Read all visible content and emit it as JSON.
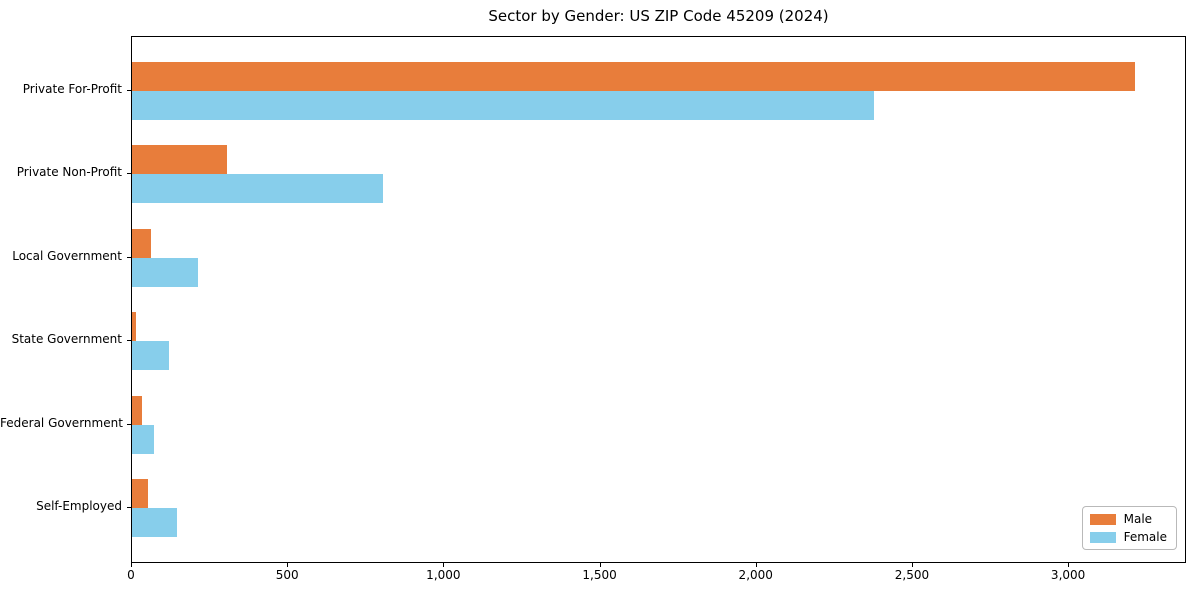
{
  "title": "Sector by Gender: US ZIP Code 45209 (2024)",
  "chart_data": {
    "type": "bar",
    "orientation": "horizontal",
    "title": "Sector by Gender: US ZIP Code 45209 (2024)",
    "xlabel": "",
    "ylabel": "",
    "categories": [
      "Private For-Profit",
      "Private Non-Profit",
      "Local Government",
      "State Government",
      "Federal Government",
      "Self-Employed"
    ],
    "series": [
      {
        "name": "Male",
        "color": "#E87D3B",
        "values": [
          3210,
          305,
          60,
          13,
          32,
          50
        ]
      },
      {
        "name": "Female",
        "color": "#87CEEB",
        "values": [
          2375,
          805,
          210,
          120,
          70,
          145
        ]
      }
    ],
    "xlim": [
      0,
      3371
    ],
    "x_ticks": [
      0,
      500,
      1000,
      1500,
      2000,
      2500,
      3000
    ],
    "x_tick_labels": [
      "0",
      "500",
      "1,000",
      "1,500",
      "2,000",
      "2,500",
      "3,000"
    ],
    "grid": false,
    "legend_position": "lower right"
  },
  "legend": {
    "items": [
      {
        "label": "Male",
        "color": "#E87D3B"
      },
      {
        "label": "Female",
        "color": "#87CEEB"
      }
    ]
  }
}
